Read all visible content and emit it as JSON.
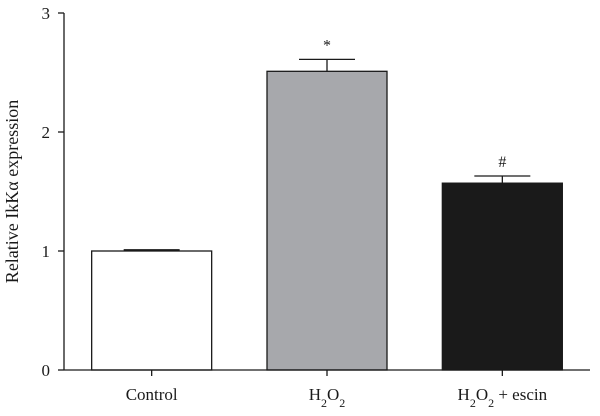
{
  "chart_data": {
    "type": "bar",
    "ylabel": "Relative IkKα expression",
    "ylim": [
      0,
      3
    ],
    "yticks": [
      0,
      1,
      2,
      3
    ],
    "grid": false,
    "categories": [
      {
        "label": "Control",
        "value": 1.0,
        "error": 0.01,
        "color": "#ffffff",
        "annotation": ""
      },
      {
        "label": "H2O2",
        "value": 2.51,
        "error": 0.1,
        "color": "#a7a8ac",
        "annotation": "*"
      },
      {
        "label": "H2O2 + escin",
        "value": 1.57,
        "error": 0.06,
        "color": "#1a1a1a",
        "annotation": "#"
      }
    ]
  }
}
